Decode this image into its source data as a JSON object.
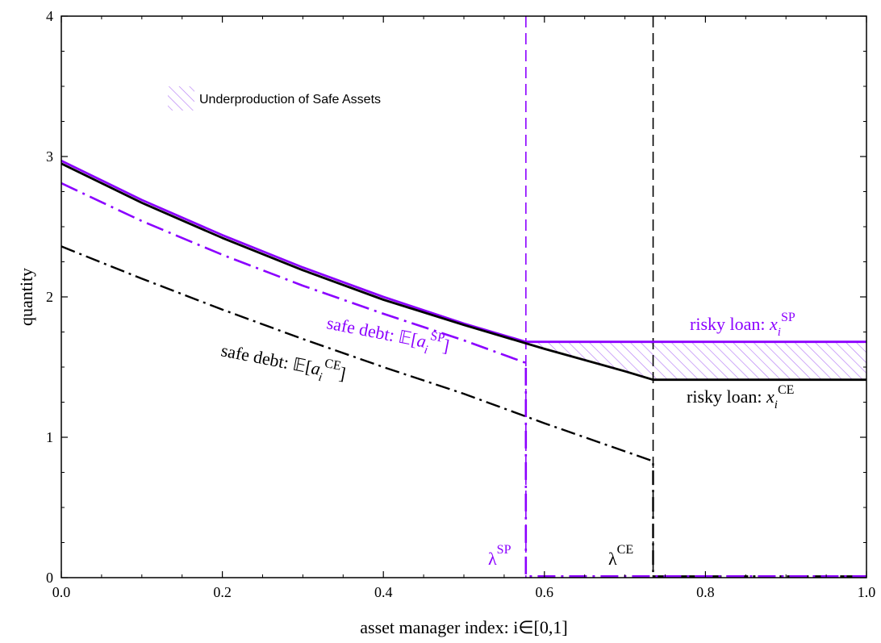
{
  "chart_data": {
    "type": "line",
    "xlabel": "asset manager index: i∈[0,1]",
    "ylabel": "quantity",
    "xlim": [
      0,
      1
    ],
    "ylim": [
      0,
      4
    ],
    "x_ticks": [
      "0.0",
      "0.2",
      "0.4",
      "0.6",
      "0.8",
      "1.0"
    ],
    "y_ticks": [
      "0",
      "1",
      "2",
      "3",
      "4"
    ],
    "grid": false,
    "colors": {
      "sp": "#8b00ff",
      "ce": "#000000",
      "hatch": "#b57cf5"
    },
    "legend": {
      "position": "top-left",
      "label": "Underproduction of Safe Assets"
    },
    "thresholds": {
      "lambda_sp": 0.577,
      "lambda_ce": 0.735
    },
    "series": [
      {
        "key": "risky_sp",
        "x": [
          0,
          0.1,
          0.2,
          0.3,
          0.4,
          0.5,
          0.577,
          0.6,
          0.7,
          0.8,
          0.9,
          1.0
        ],
        "y": [
          2.97,
          2.69,
          2.44,
          2.21,
          2.0,
          1.81,
          1.68,
          1.68,
          1.68,
          1.68,
          1.68,
          1.68
        ]
      },
      {
        "key": "risky_ce",
        "x": [
          0,
          0.1,
          0.2,
          0.3,
          0.4,
          0.5,
          0.6,
          0.7,
          0.735,
          0.8,
          0.9,
          1.0
        ],
        "y": [
          2.95,
          2.67,
          2.42,
          2.19,
          1.98,
          1.8,
          1.63,
          1.47,
          1.41,
          1.41,
          1.41,
          1.41
        ]
      },
      {
        "key": "safe_sp",
        "x": [
          0,
          0.1,
          0.2,
          0.3,
          0.4,
          0.5,
          0.577,
          0.577,
          0.7,
          0.8,
          0.9,
          1.0
        ],
        "y": [
          2.81,
          2.54,
          2.3,
          2.08,
          1.88,
          1.69,
          1.53,
          0.01,
          0.01,
          0.01,
          0.01,
          0.01
        ]
      },
      {
        "key": "safe_ce",
        "x": [
          0,
          0.1,
          0.2,
          0.3,
          0.4,
          0.5,
          0.6,
          0.735,
          0.735,
          0.8,
          0.9,
          1.0
        ],
        "y": [
          2.36,
          2.13,
          1.91,
          1.7,
          1.5,
          1.31,
          1.1,
          0.83,
          0.01,
          0.01,
          0.01,
          0.01
        ]
      }
    ],
    "annotations": {
      "risky_sp": {
        "text": "risky loan: ",
        "var": "x",
        "sub": "i",
        "sup": "SP"
      },
      "risky_ce": {
        "text": "risky loan: ",
        "var": "x",
        "sub": "i",
        "sup": "CE"
      },
      "safe_sp": {
        "text": "safe debt: 𝔼[",
        "var": "a",
        "sub": "i",
        "sup": "SP",
        "close": "]"
      },
      "safe_ce": {
        "text": "safe debt: 𝔼[",
        "var": "a",
        "sub": "i",
        "sup": "CE",
        "close": "]"
      },
      "lambda_sp": {
        "text": "λ",
        "sup": "SP"
      },
      "lambda_ce": {
        "text": "λ",
        "sup": "CE"
      }
    }
  }
}
